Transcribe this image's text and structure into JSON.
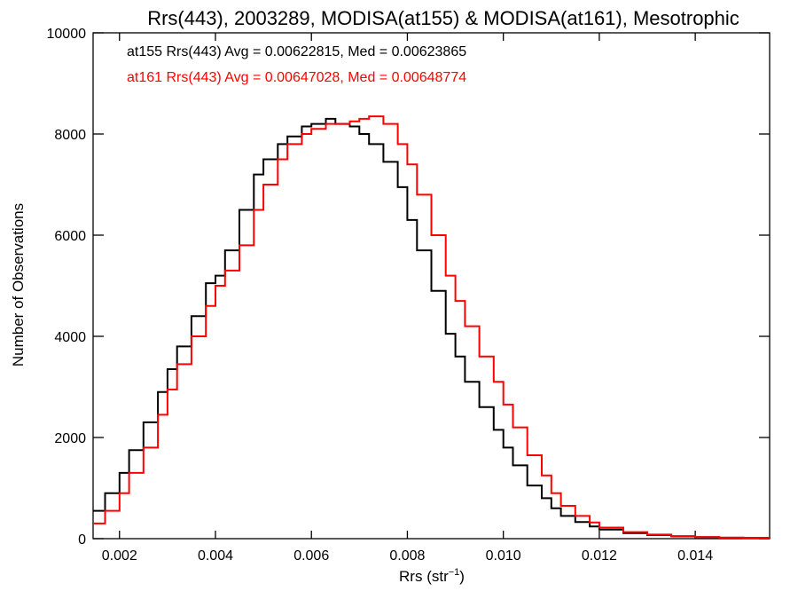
{
  "chart_data": {
    "type": "line",
    "style": "step-histogram",
    "title": "Rrs(443), 2003289, MODISA(at155) & MODISA(at161), Mesotrophic",
    "xlabel": "Rrs (str",
    "xlabel_sup": "−1",
    "xlabel_close": ")",
    "ylabel": "Number of Observations",
    "xlim": [
      0.00145,
      0.01555
    ],
    "ylim": [
      0,
      10000
    ],
    "x_ticks": [
      0.002,
      0.004,
      0.006,
      0.008,
      0.01,
      0.012,
      0.014
    ],
    "x_tick_labels": [
      "0.002",
      "0.004",
      "0.006",
      "0.008",
      "0.010",
      "0.012",
      "0.014"
    ],
    "y_ticks": [
      0,
      2000,
      4000,
      6000,
      8000,
      10000
    ],
    "y_tick_labels": [
      "0",
      "2000",
      "4000",
      "6000",
      "8000",
      "10000"
    ],
    "grid": false,
    "annotations": [
      {
        "text": "at155 Rrs(443) Avg = 0.00622815, Med = 0.00623865",
        "color": "#000000"
      },
      {
        "text": "at161 Rrs(443) Avg = 0.00647028, Med = 0.00648774",
        "color": "#ff0000"
      }
    ],
    "series": [
      {
        "color": "#000000",
        "x": [
          0.00145,
          0.0017,
          0.002,
          0.0022,
          0.0025,
          0.0028,
          0.003,
          0.0032,
          0.0035,
          0.0038,
          0.004,
          0.0042,
          0.0045,
          0.0048,
          0.005,
          0.0053,
          0.0055,
          0.0058,
          0.006,
          0.0063,
          0.0065,
          0.0068,
          0.007,
          0.0072,
          0.0075,
          0.0078,
          0.008,
          0.0082,
          0.0085,
          0.0088,
          0.009,
          0.0092,
          0.0095,
          0.0098,
          0.01,
          0.0102,
          0.0105,
          0.0108,
          0.011,
          0.0112,
          0.0115,
          0.0118,
          0.012,
          0.0125,
          0.013,
          0.0135,
          0.014,
          0.0145,
          0.015,
          0.01555
        ],
        "y": [
          550,
          900,
          1300,
          1750,
          2300,
          2900,
          3350,
          3800,
          4400,
          5050,
          5200,
          5700,
          6500,
          7200,
          7500,
          7800,
          7950,
          8150,
          8200,
          8300,
          8200,
          8150,
          8000,
          7800,
          7450,
          6950,
          6300,
          5700,
          4900,
          4050,
          3600,
          3100,
          2600,
          2150,
          1800,
          1450,
          1050,
          800,
          600,
          450,
          330,
          240,
          180,
          110,
          70,
          45,
          30,
          20,
          15,
          10
        ]
      },
      {
        "color": "#ff0000",
        "x": [
          0.00145,
          0.0017,
          0.002,
          0.0022,
          0.0025,
          0.0028,
          0.003,
          0.0032,
          0.0035,
          0.0038,
          0.004,
          0.0042,
          0.0045,
          0.0048,
          0.005,
          0.0053,
          0.0055,
          0.0058,
          0.006,
          0.0063,
          0.0065,
          0.0068,
          0.007,
          0.0072,
          0.0075,
          0.0078,
          0.008,
          0.0082,
          0.0085,
          0.0088,
          0.009,
          0.0092,
          0.0095,
          0.0098,
          0.01,
          0.0102,
          0.0105,
          0.0108,
          0.011,
          0.0112,
          0.0115,
          0.0118,
          0.012,
          0.0125,
          0.013,
          0.0135,
          0.014,
          0.0145,
          0.015,
          0.01555
        ],
        "y": [
          300,
          550,
          900,
          1300,
          1800,
          2450,
          2950,
          3450,
          4000,
          4600,
          5000,
          5300,
          5800,
          6500,
          7000,
          7500,
          7800,
          8000,
          8100,
          8200,
          8200,
          8250,
          8300,
          8350,
          8200,
          7800,
          7400,
          6800,
          6000,
          5200,
          4700,
          4200,
          3600,
          3100,
          2650,
          2200,
          1650,
          1250,
          900,
          650,
          450,
          320,
          220,
          130,
          80,
          50,
          30,
          20,
          15,
          10
        ]
      }
    ]
  }
}
